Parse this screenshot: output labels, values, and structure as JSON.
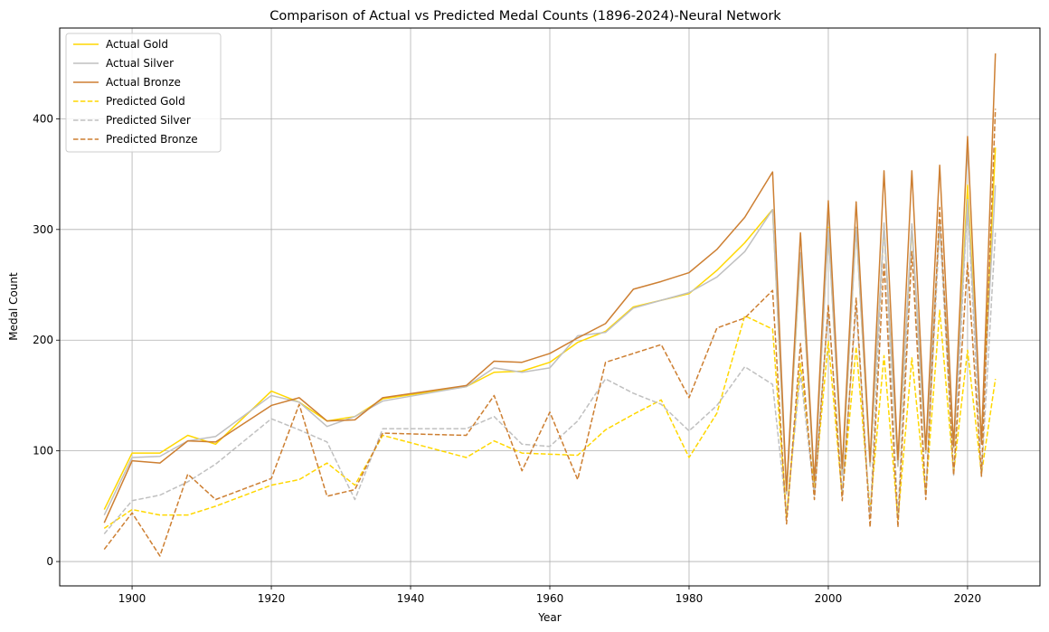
{
  "chart_data": {
    "type": "line",
    "title": "Comparison of Actual vs Predicted Medal Counts (1896-2024)-Neural Network",
    "xlabel": "Year",
    "ylabel": "Medal Count",
    "xlim": [
      1889.6,
      2030.4
    ],
    "ylim": [
      -22,
      482
    ],
    "xticks": [
      1900,
      1920,
      1940,
      1960,
      1980,
      2000,
      2020
    ],
    "yticks": [
      0,
      100,
      200,
      300,
      400
    ],
    "grid": true,
    "legend_position": "top-left",
    "x": [
      1896,
      1900,
      1904,
      1908,
      1912,
      1920,
      1924,
      1928,
      1932,
      1936,
      1948,
      1952,
      1956,
      1960,
      1964,
      1968,
      1972,
      1976,
      1980,
      1984,
      1988,
      1992,
      1994,
      1996,
      1998,
      2000,
      2002,
      2004,
      2006,
      2008,
      2010,
      2012,
      2014,
      2016,
      2018,
      2020,
      2022,
      2024
    ],
    "series": [
      {
        "name": "Actual Gold",
        "color": "#FFD700",
        "dash": "solid",
        "values": [
          47,
          98,
          98,
          114,
          106,
          154,
          144,
          127,
          131,
          147,
          158,
          171,
          172,
          180,
          198,
          208,
          230,
          236,
          242,
          263,
          288,
          318,
          61,
          277,
          68,
          302,
          78,
          302,
          86,
          304,
          86,
          302,
          98,
          307,
          103,
          340,
          109,
          374
        ]
      },
      {
        "name": "Actual Silver",
        "color": "#C0C0C0",
        "dash": "solid",
        "values": [
          42,
          94,
          95,
          109,
          113,
          150,
          144,
          122,
          131,
          145,
          158,
          175,
          171,
          175,
          204,
          207,
          229,
          236,
          243,
          257,
          280,
          318,
          61,
          279,
          67,
          301,
          78,
          302,
          86,
          306,
          86,
          305,
          98,
          308,
          103,
          327,
          109,
          340
        ]
      },
      {
        "name": "Actual Bronze",
        "color": "#CD7F32",
        "dash": "solid",
        "values": [
          35,
          91,
          89,
          109,
          108,
          141,
          148,
          127,
          128,
          148,
          159,
          181,
          180,
          188,
          202,
          215,
          246,
          253,
          261,
          282,
          311,
          352,
          64,
          297,
          72,
          326,
          84,
          325,
          90,
          353,
          92,
          353,
          101,
          358,
          104,
          384,
          106,
          459
        ]
      },
      {
        "name": "Predicted Gold",
        "color": "#FFD700",
        "dash": "dashed",
        "values": [
          30,
          47,
          42,
          42,
          50,
          69,
          74,
          89,
          69,
          114,
          94,
          109,
          98,
          97,
          96,
          119,
          133,
          146,
          94,
          134,
          222,
          210,
          40,
          179,
          64,
          199,
          59,
          194,
          47,
          186,
          38,
          184,
          61,
          227,
          80,
          191,
          79,
          165
        ]
      },
      {
        "name": "Predicted Silver",
        "color": "#C0C0C0",
        "dash": "dashed",
        "values": [
          25,
          55,
          60,
          72,
          88,
          129,
          119,
          108,
          56,
          120,
          120,
          131,
          106,
          104,
          127,
          165,
          152,
          142,
          118,
          141,
          176,
          160,
          43,
          170,
          60,
          230,
          62,
          230,
          39,
          303,
          40,
          305,
          60,
          302,
          78,
          327,
          77,
          297
        ]
      },
      {
        "name": "Predicted Bronze",
        "color": "#CD7F32",
        "dash": "dashed",
        "values": [
          11,
          44,
          5,
          79,
          56,
          75,
          142,
          59,
          65,
          116,
          114,
          150,
          82,
          135,
          74,
          180,
          188,
          196,
          148,
          211,
          220,
          245,
          34,
          197,
          56,
          232,
          55,
          238,
          31,
          270,
          31,
          280,
          56,
          320,
          78,
          270,
          77,
          409
        ]
      }
    ]
  }
}
